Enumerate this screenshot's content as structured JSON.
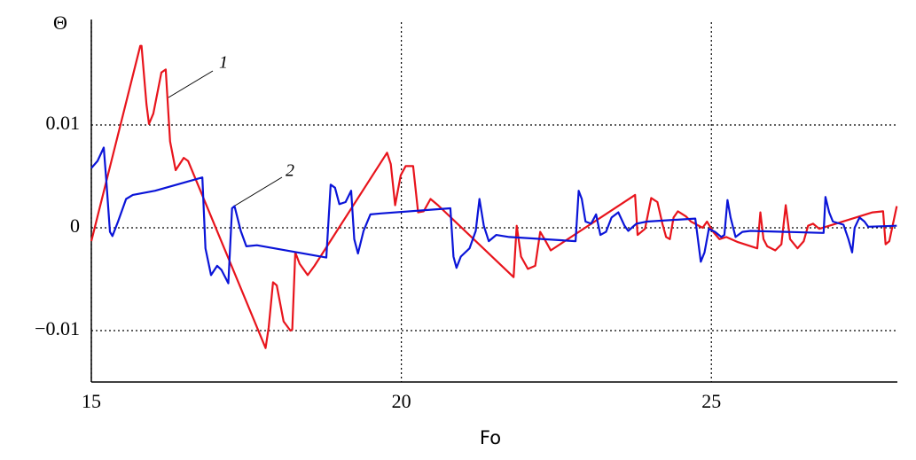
{
  "chart_data": {
    "type": "line",
    "ylabel": "Θ",
    "xlabel": "Fo",
    "xlim": [
      15,
      28
    ],
    "ylim": [
      -0.015,
      0.02
    ],
    "xticks": [
      15,
      20,
      25
    ],
    "yticks": [
      {
        "value": -0.01,
        "label": "−0.01"
      },
      0,
      0.01
    ],
    "grid": true,
    "series": [
      {
        "name": "1",
        "color": "#e8141c",
        "x": [
          15.0,
          15.79,
          15.81,
          15.89,
          15.93,
          16.0,
          16.13,
          16.2,
          16.27,
          16.36,
          16.49,
          16.56,
          17.81,
          17.86,
          17.93,
          17.99,
          18.1,
          18.21,
          18.24,
          18.29,
          18.36,
          18.49,
          18.6,
          19.77,
          19.83,
          19.9,
          19.99,
          20.07,
          20.19,
          20.27,
          20.36,
          20.47,
          20.59,
          21.81,
          21.86,
          21.93,
          22.04,
          22.16,
          22.24,
          22.31,
          22.41,
          23.77,
          23.81,
          23.93,
          24.03,
          24.13,
          24.21,
          24.27,
          24.33,
          24.39,
          24.46,
          24.59,
          24.67,
          24.86,
          24.93,
          25.03,
          25.13,
          25.24,
          25.43,
          25.74,
          25.79,
          25.84,
          25.9,
          26.03,
          26.13,
          26.2,
          26.27,
          26.39,
          26.49,
          26.56,
          26.64,
          26.74,
          27.6,
          27.77,
          27.81,
          27.87,
          27.99
        ],
        "values": [
          -0.0013,
          0.0177,
          0.0177,
          0.012,
          0.0101,
          0.0111,
          0.0151,
          0.0154,
          0.0084,
          0.0056,
          0.0068,
          0.0065,
          -0.0117,
          -0.0097,
          -0.0053,
          -0.0056,
          -0.0091,
          -0.01,
          -0.0099,
          -0.0024,
          -0.0035,
          -0.0046,
          -0.0037,
          0.0073,
          0.0062,
          0.0022,
          0.0051,
          0.006,
          0.006,
          0.0015,
          0.0016,
          0.0028,
          0.0022,
          -0.0048,
          0.0002,
          -0.0028,
          -0.004,
          -0.0037,
          -0.0004,
          -0.0011,
          -0.0022,
          0.0032,
          -0.0007,
          -0.0001,
          0.0029,
          0.0025,
          0.0004,
          -0.0009,
          -0.0011,
          0.001,
          0.0016,
          0.0011,
          0.0006,
          0,
          0.0006,
          -0.0004,
          -0.0011,
          -0.0009,
          -0.0014,
          -0.002,
          0.0015,
          -0.0011,
          -0.0018,
          -0.0022,
          -0.0016,
          0.0022,
          -0.0011,
          -0.002,
          -0.0013,
          0.0002,
          0.0004,
          -0.0001,
          0.0015,
          0.0016,
          -0.0016,
          -0.0013,
          0.0021
        ]
      },
      {
        "name": "2",
        "color": "#0a14d8",
        "x": [
          15.0,
          15.1,
          15.2,
          15.24,
          15.3,
          15.34,
          15.43,
          15.56,
          15.67,
          16.03,
          16.79,
          16.84,
          16.93,
          17.03,
          17.1,
          17.21,
          17.27,
          17.31,
          17.41,
          17.5,
          17.67,
          18.79,
          18.86,
          18.93,
          19.0,
          19.1,
          19.19,
          19.24,
          19.3,
          19.39,
          19.5,
          19.67,
          20.79,
          20.84,
          20.89,
          20.96,
          21.1,
          21.2,
          21.26,
          21.33,
          21.41,
          21.53,
          21.74,
          22.81,
          22.86,
          22.91,
          22.97,
          23.06,
          23.14,
          23.21,
          23.3,
          23.39,
          23.5,
          23.6,
          23.66,
          23.79,
          23.96,
          24.74,
          24.83,
          24.89,
          24.96,
          25.06,
          25.16,
          25.21,
          25.26,
          25.31,
          25.39,
          25.5,
          25.63,
          26.81,
          26.84,
          26.9,
          26.96,
          27.13,
          27.21,
          27.27,
          27.31,
          27.39,
          27.47,
          27.53,
          27.99
        ],
        "values": [
          0.0058,
          0.0065,
          0.0078,
          0.0047,
          -0.0004,
          -0.0008,
          0.0006,
          0.0028,
          0.0032,
          0.0036,
          0.0049,
          -0.002,
          -0.0046,
          -0.0037,
          -0.0041,
          -0.0054,
          0.0019,
          0.0021,
          -0.0003,
          -0.0018,
          -0.0017,
          -0.0029,
          0.0042,
          0.0039,
          0.0023,
          0.0025,
          0.0036,
          -0.0011,
          -0.0025,
          -0.0003,
          0.0013,
          0.0014,
          0.0019,
          -0.0028,
          -0.0039,
          -0.0028,
          -0.002,
          -0.0003,
          0.0028,
          0.0002,
          -0.0013,
          -0.0007,
          -0.0009,
          -0.0013,
          0.0036,
          0.0028,
          0.0006,
          0.0004,
          0.0013,
          -0.0007,
          -0.0004,
          0.001,
          0.0015,
          0.0002,
          -0.0003,
          0.0004,
          0.0006,
          0.0009,
          -0.0033,
          -0.0024,
          -0.0001,
          -0.0004,
          -0.0009,
          -0.0007,
          0.0027,
          0.001,
          -0.0009,
          -0.0004,
          -0.0003,
          -0.0005,
          0.003,
          0.0015,
          0.0006,
          0.0003,
          -0.0011,
          -0.0024,
          0,
          0.001,
          0.0006,
          0.0001,
          0.0002
        ]
      }
    ]
  }
}
